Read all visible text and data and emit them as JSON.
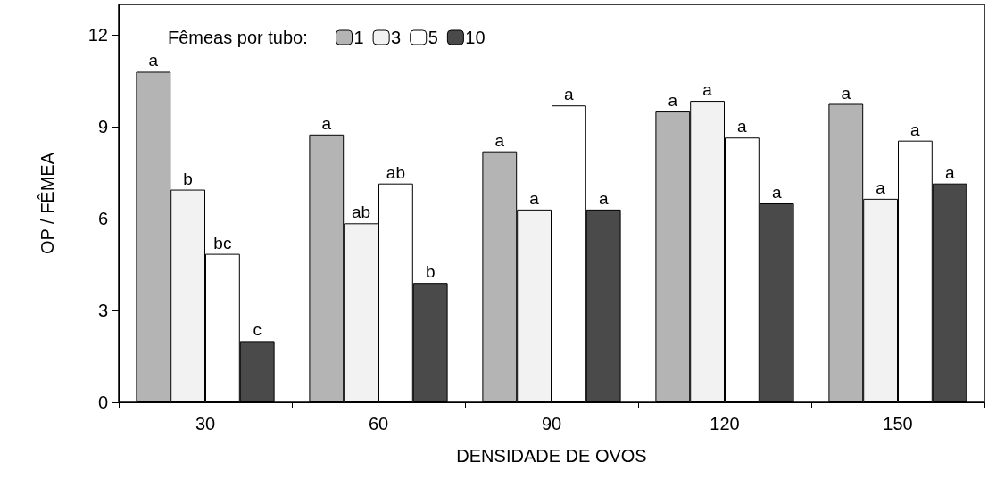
{
  "chart_data": {
    "type": "bar",
    "xlabel": "DENSIDADE DE OVOS",
    "ylabel": "OP / FÊMEA",
    "legend_title": "Fêmeas por tubo:",
    "categories": [
      "30",
      "60",
      "90",
      "120",
      "150"
    ],
    "series": [
      {
        "name": "1",
        "color": "#b4b4b4",
        "values": [
          10.8,
          8.75,
          8.2,
          9.5,
          9.75
        ],
        "value_labels": [
          "a",
          "a",
          "a",
          "a",
          "a"
        ]
      },
      {
        "name": "3",
        "color": "#f2f2f2",
        "values": [
          6.95,
          5.85,
          6.3,
          9.85,
          6.65
        ],
        "value_labels": [
          "b",
          "ab",
          "a",
          "a",
          "a"
        ]
      },
      {
        "name": "5",
        "color": "#ffffff",
        "values": [
          4.85,
          7.15,
          9.7,
          8.65,
          8.55
        ],
        "value_labels": [
          "bc",
          "ab",
          "a",
          "a",
          "a"
        ]
      },
      {
        "name": "10",
        "color": "#4a4a4a",
        "values": [
          2.0,
          3.9,
          6.3,
          6.5,
          7.15
        ],
        "value_labels": [
          "c",
          "b",
          "a",
          "a",
          "a"
        ]
      }
    ],
    "ylim": [
      0,
      13
    ],
    "yticks": [
      0,
      3,
      6,
      9,
      12
    ],
    "grid": false,
    "legend": "top left"
  }
}
